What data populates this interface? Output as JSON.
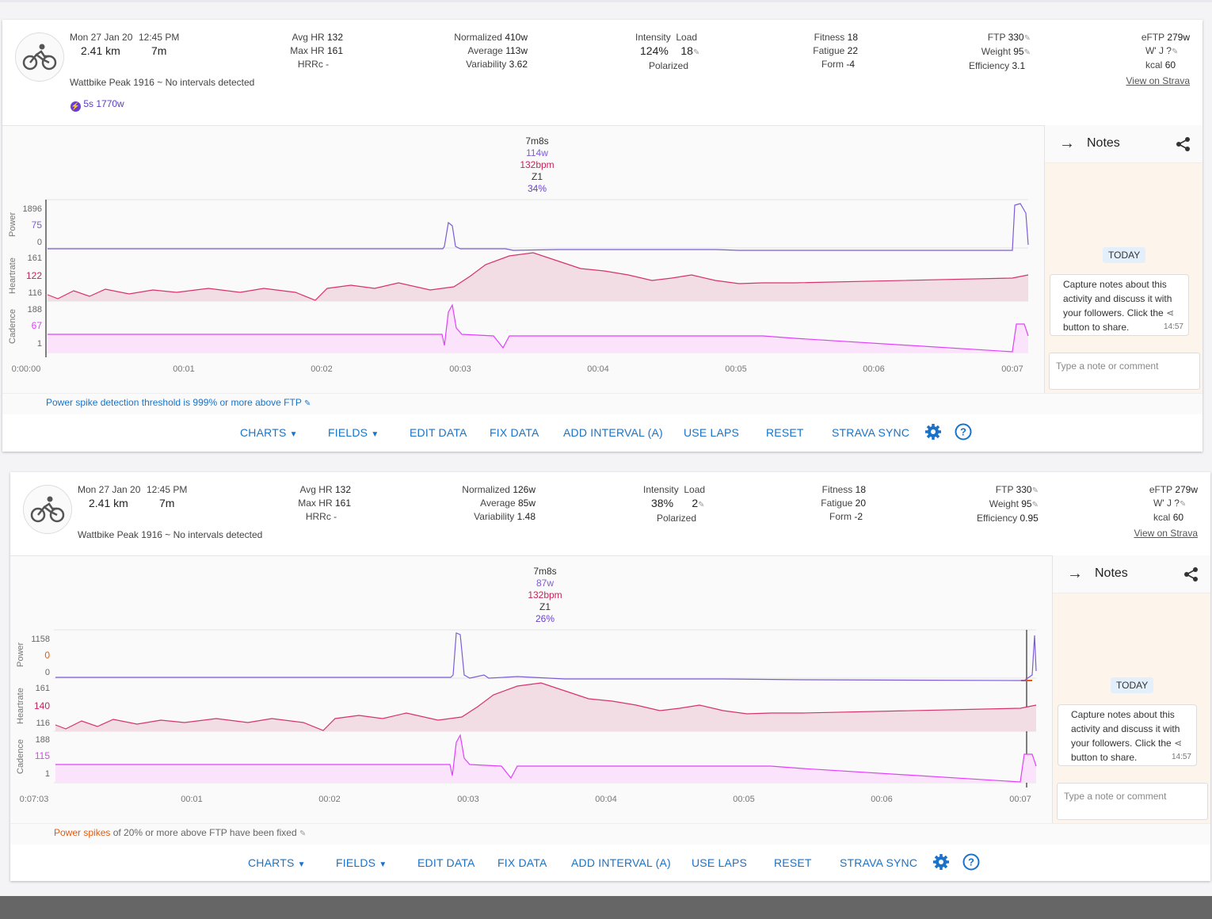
{
  "panels": [
    {
      "date": "Mon 27 Jan 20",
      "time": "12:45 PM",
      "distance": "2.41 km",
      "duration": "7m",
      "device_line": "Wattbike Peak 1916 ~ No intervals detected",
      "peak_badge": "5s 1770w",
      "hr": {
        "avg_label": "Avg HR",
        "avg": "132",
        "max_label": "Max HR",
        "max": "161",
        "hrrc": "HRRc -"
      },
      "power": {
        "np_label": "Normalized",
        "np": "410w",
        "avg_label": "Average",
        "avg": "113w",
        "vi_label": "Variability",
        "vi": "3.62"
      },
      "intensity": {
        "label": "Intensity",
        "value": "124%",
        "load_label": "Load",
        "load": "18",
        "polarized": "Polarized"
      },
      "fitness": {
        "fitness_label": "Fitness",
        "fitness": "18",
        "fatigue_label": "Fatigue",
        "fatigue": "22",
        "form_label": "Form",
        "form": "-4"
      },
      "ftp": {
        "ftp_label": "FTP",
        "ftp": "330",
        "weight_label": "Weight",
        "weight": "95",
        "eff_label": "Efficiency",
        "eff": "3.1"
      },
      "eftp": {
        "eftp_label": "eFTP",
        "eftp": "279w",
        "wj": "W' J ?",
        "kcal_label": "kcal",
        "kcal": "60",
        "strava": "View on Strava"
      },
      "tooltip": {
        "time": "7m8s",
        "power": "114w",
        "hr": "132bpm",
        "zone": "Z1",
        "pct": "34%"
      },
      "axes": {
        "power_label": "Power",
        "power_ticks": [
          "1896",
          "75",
          "0"
        ],
        "hr_label": "Heartrate",
        "hr_ticks": [
          "161",
          "122",
          "116"
        ],
        "cad_label": "Cadence",
        "cad_ticks": [
          "188",
          "67",
          "1"
        ],
        "x_ticks": [
          "0:00:00",
          "00:01",
          "00:02",
          "00:03",
          "00:04",
          "00:05",
          "00:06",
          "00:07"
        ]
      },
      "spike_note": {
        "prefix": "Power spike detection threshold is 999% or more above FTP",
        "orange": "",
        "rest": ""
      },
      "notes": {
        "title": "Notes",
        "today": "TODAY",
        "bubble": "Capture notes about this activity and discuss it with your followers. Click the",
        "bubble_end": "button to share.",
        "time": "14:57",
        "placeholder": "Type a note or comment"
      },
      "toolbar": {
        "charts": "CHARTS",
        "fields": "FIELDS",
        "edit": "EDIT DATA",
        "fix": "FIX DATA",
        "add_interval": "ADD INTERVAL (A)",
        "use_laps": "USE LAPS",
        "reset": "RESET",
        "strava_sync": "STRAVA SYNC"
      }
    },
    {
      "date": "Mon 27 Jan 20",
      "time": "12:45 PM",
      "distance": "2.41 km",
      "duration": "7m",
      "device_line": "Wattbike Peak 1916 ~ No intervals detected",
      "peak_badge": "",
      "hr": {
        "avg_label": "Avg HR",
        "avg": "132",
        "max_label": "Max HR",
        "max": "161",
        "hrrc": "HRRc -"
      },
      "power": {
        "np_label": "Normalized",
        "np": "126w",
        "avg_label": "Average",
        "avg": "85w",
        "vi_label": "Variability",
        "vi": "1.48"
      },
      "intensity": {
        "label": "Intensity",
        "value": "38%",
        "load_label": "Load",
        "load": "2",
        "polarized": "Polarized"
      },
      "fitness": {
        "fitness_label": "Fitness",
        "fitness": "18",
        "fatigue_label": "Fatigue",
        "fatigue": "20",
        "form_label": "Form",
        "form": "-2"
      },
      "ftp": {
        "ftp_label": "FTP",
        "ftp": "330",
        "weight_label": "Weight",
        "weight": "95",
        "eff_label": "Efficiency",
        "eff": "0.95"
      },
      "eftp": {
        "eftp_label": "eFTP",
        "eftp": "279w",
        "wj": "W' J ?",
        "kcal_label": "kcal",
        "kcal": "60",
        "strava": "View on Strava"
      },
      "tooltip": {
        "time": "7m8s",
        "power": "87w",
        "hr": "132bpm",
        "zone": "Z1",
        "pct": "26%"
      },
      "axes": {
        "power_label": "Power",
        "power_ticks": [
          "1158",
          "0",
          "0"
        ],
        "hr_label": "Heartrate",
        "hr_ticks": [
          "161",
          "140",
          "116"
        ],
        "cad_label": "Cadence",
        "cad_ticks": [
          "188",
          "115",
          "1"
        ],
        "x_ticks": [
          "0:07:03",
          "00:01",
          "00:02",
          "00:03",
          "00:04",
          "00:05",
          "00:06",
          "00:07"
        ]
      },
      "spike_note": {
        "prefix": "",
        "orange": "Power spikes",
        "rest": " of 20% or more above FTP have been fixed"
      },
      "notes": {
        "title": "Notes",
        "today": "TODAY",
        "bubble": "Capture notes about this activity and discuss it with your followers. Click the",
        "bubble_end": "button to share.",
        "time": "14:57",
        "placeholder": "Type a note or comment"
      },
      "toolbar": {
        "charts": "CHARTS",
        "fields": "FIELDS",
        "edit": "EDIT DATA",
        "fix": "FIX DATA",
        "add_interval": "ADD INTERVAL (A)",
        "use_laps": "USE LAPS",
        "reset": "RESET",
        "strava_sync": "STRAVA SYNC"
      }
    }
  ],
  "colors": {
    "power": "#7c5cd6",
    "hr": "#d6336c",
    "cadence": "#e040fb",
    "accent": "#1a73c8",
    "orange": "#e8590c"
  }
}
